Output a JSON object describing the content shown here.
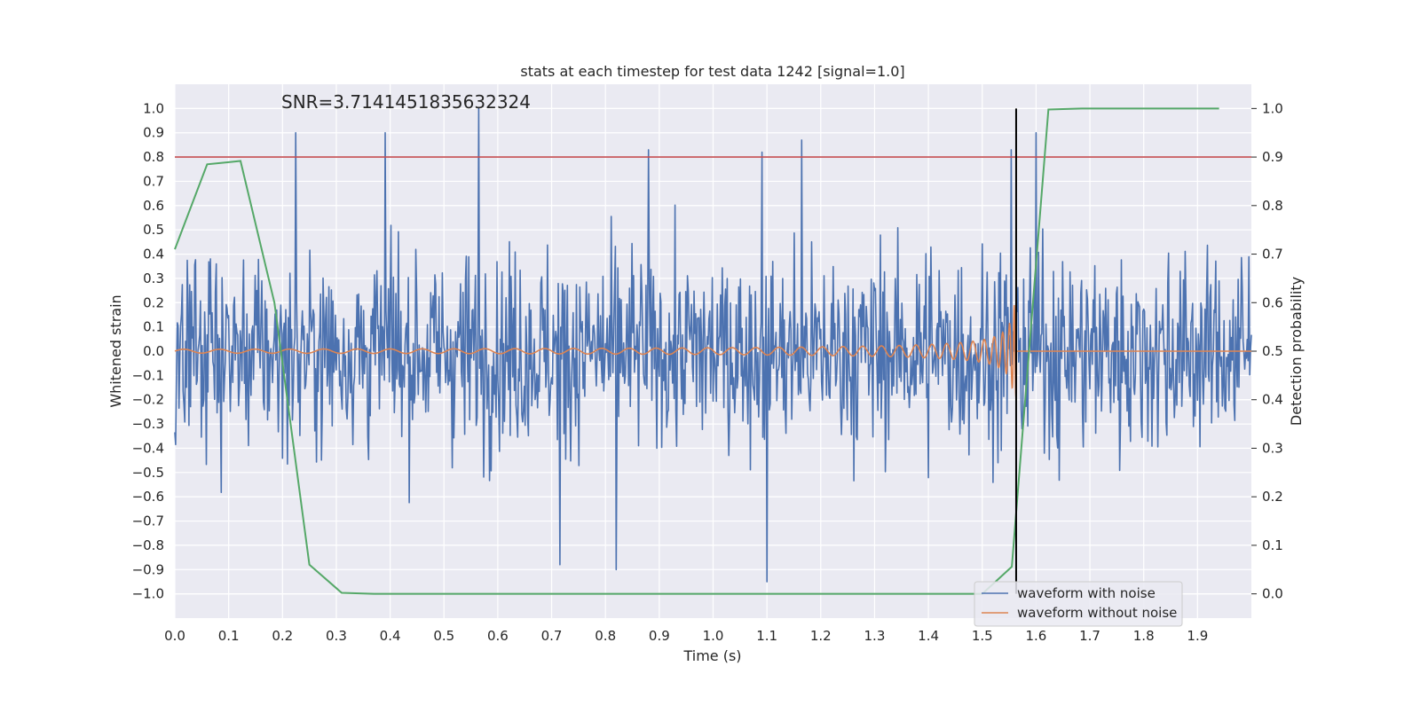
{
  "chart_data": {
    "type": "line",
    "title": "stats at each timestep for test data 1242 [signal=1.0]",
    "annotation": "SNR=3.7141451835632324",
    "xlabel": "Time (s)",
    "ylabel_left": "Whitened strain",
    "ylabel_right": "Detection probability",
    "xlim": [
      0.0,
      2.0
    ],
    "ylim_left": [
      -1.1,
      1.1
    ],
    "ylim_right": [
      -0.05,
      1.05
    ],
    "x_ticks": [
      "0.0",
      "0.1",
      "0.2",
      "0.3",
      "0.4",
      "0.5",
      "0.6",
      "0.7",
      "0.8",
      "0.9",
      "1.0",
      "1.1",
      "1.2",
      "1.3",
      "1.4",
      "1.5",
      "1.6",
      "1.7",
      "1.8",
      "1.9"
    ],
    "x_tick_values": [
      0.0,
      0.1,
      0.2,
      0.3,
      0.4,
      0.5,
      0.6,
      0.7,
      0.8,
      0.9,
      1.0,
      1.1,
      1.2,
      1.3,
      1.4,
      1.5,
      1.6,
      1.7,
      1.8,
      1.9
    ],
    "y_left_ticks": [
      "1.0",
      "0.9",
      "0.8",
      "0.7",
      "0.6",
      "0.5",
      "0.4",
      "0.3",
      "0.2",
      "0.1",
      "0.0",
      "−0.1",
      "−0.2",
      "−0.3",
      "−0.4",
      "−0.5",
      "−0.6",
      "−0.7",
      "−0.8",
      "−0.9",
      "−1.0"
    ],
    "y_left_tick_values": [
      1.0,
      0.9,
      0.8,
      0.7,
      0.6,
      0.5,
      0.4,
      0.3,
      0.2,
      0.1,
      0.0,
      -0.1,
      -0.2,
      -0.3,
      -0.4,
      -0.5,
      -0.6,
      -0.7,
      -0.8,
      -0.9,
      -1.0
    ],
    "y_right_ticks": [
      "1.0",
      "0.9",
      "0.8",
      "0.7",
      "0.6",
      "0.5",
      "0.4",
      "0.3",
      "0.2",
      "0.1",
      "0.0"
    ],
    "y_right_tick_values": [
      1.0,
      0.9,
      0.8,
      0.7,
      0.6,
      0.5,
      0.4,
      0.3,
      0.2,
      0.1,
      0.0
    ],
    "threshold_right": 0.9,
    "event_time": 1.563,
    "grid": true,
    "legend_position": "lower-right",
    "colors": {
      "noisy": "#4c72b0",
      "clean": "#dd8452",
      "probability": "#55a868",
      "threshold": "#c44e52",
      "event": "#000000",
      "background": "#eaeaf2",
      "grid": "#ffffff"
    },
    "series": [
      {
        "name": "waveform with noise",
        "description_of_values": "white-noise-like whitened strain, amplitude mostly within ±0.6, peaks near 1.0 at t=0.565",
        "peak_points": [
          {
            "x": 0.225,
            "y": 0.9
          },
          {
            "x": 0.39,
            "y": 0.9
          },
          {
            "x": 0.565,
            "y": 1.0
          },
          {
            "x": 0.88,
            "y": 0.83
          },
          {
            "x": 1.09,
            "y": 0.82
          },
          {
            "x": 1.165,
            "y": 0.87
          },
          {
            "x": 1.1,
            "y": -0.95
          },
          {
            "x": 0.715,
            "y": -0.88
          },
          {
            "x": 0.82,
            "y": -0.9
          },
          {
            "x": 1.554,
            "y": 0.83
          },
          {
            "x": 1.6,
            "y": 0.9
          }
        ]
      },
      {
        "name": "waveform without noise",
        "chirp_start": 0.0,
        "chirp_end": 1.563,
        "start_amplitude": 0.008,
        "end_amplitude": 0.19,
        "start_frequency_hz": 12,
        "end_frequency_hz": 180
      },
      {
        "name": "detection probability",
        "x": [
          0.0,
          0.06,
          0.122,
          0.185,
          0.25,
          0.31,
          0.37,
          0.5,
          1.0,
          1.5,
          1.555,
          1.623,
          1.685,
          1.94
        ],
        "y": [
          0.71,
          0.885,
          0.892,
          0.6,
          0.06,
          0.002,
          0.0,
          0.0,
          0.0,
          0.0,
          0.056,
          0.998,
          1.0,
          1.0
        ]
      }
    ],
    "legend": [
      {
        "label": "waveform with noise",
        "color_key": "noisy"
      },
      {
        "label": "waveform without noise",
        "color_key": "clean"
      }
    ]
  }
}
